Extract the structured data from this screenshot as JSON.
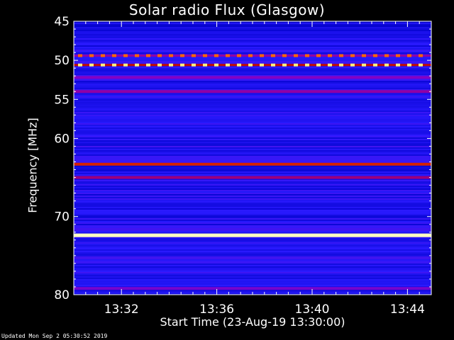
{
  "chart_data": {
    "type": "heatmap",
    "title": "Solar radio Flux (Glasgow)",
    "ylabel": "Frequency [MHz]",
    "xlabel": "Start Time (23-Aug-19 13:30:00)",
    "y_ticks": [
      "45",
      "50",
      "55",
      "60",
      "70",
      "80"
    ],
    "x_ticks": [
      "13:32",
      "13:36",
      "13:40",
      "13:44"
    ],
    "ylim": [
      45,
      80
    ],
    "xlim_minutes": [
      0,
      15
    ],
    "y_tick_values": [
      45,
      50,
      55,
      60,
      70,
      80
    ],
    "x_tick_values": [
      2,
      6,
      10,
      14
    ],
    "colormap": [
      "#000060",
      "#0000c8",
      "#2a1aff",
      "#8a00c0",
      "#c00000",
      "#ff6000",
      "#ffd000",
      "#ffffc0"
    ],
    "background_level": 0.25,
    "bands": [
      {
        "freq": 49.4,
        "level": 0.72,
        "pattern": "dashed"
      },
      {
        "freq": 50.6,
        "level": 0.95,
        "pattern": "dashed"
      },
      {
        "freq": 52.2,
        "level": 0.42
      },
      {
        "freq": 54.0,
        "level": 0.45
      },
      {
        "freq": 63.3,
        "level": 0.62
      },
      {
        "freq": 65.0,
        "level": 0.48
      },
      {
        "freq": 72.4,
        "level": 1.0
      },
      {
        "freq": 79.2,
        "level": 0.4
      }
    ]
  },
  "footer": "Updated Mon Sep  2 05:30:52 2019"
}
